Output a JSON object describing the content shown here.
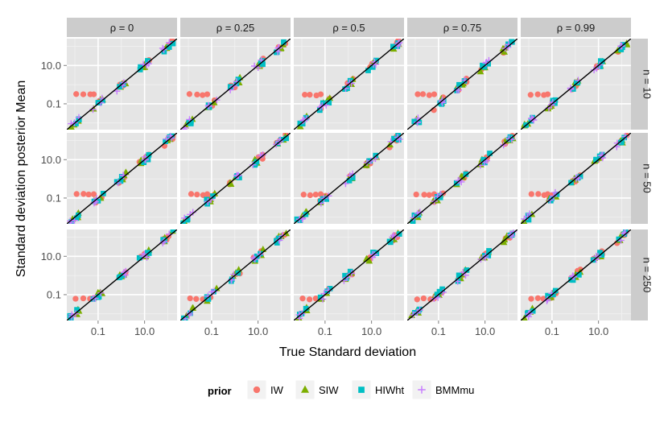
{
  "chart_data": {
    "type": "scatter",
    "title": "",
    "xlabel": "True Standard deviation",
    "ylabel": "Standard deviation posterior Mean",
    "x_scale": "log10",
    "y_scale": "log10",
    "xlim": [
      0.0045,
      250
    ],
    "ylim": [
      0.0045,
      250
    ],
    "x_ticks": [
      {
        "value": 0.1,
        "label": "0.1"
      },
      {
        "value": 10,
        "label": "10.0"
      }
    ],
    "y_ticks": [
      {
        "value": 0.1,
        "label": "0.1"
      },
      {
        "value": 10,
        "label": "10.0"
      }
    ],
    "reference_line": "y = x",
    "facet_columns": [
      "ρ = 0",
      "ρ = 0.25",
      "ρ = 0.5",
      "ρ = 0.75",
      "ρ = 0.99"
    ],
    "facet_rows": [
      "n = 10",
      "n = 50",
      "n = 250"
    ],
    "true_sd_values": [
      0.01,
      0.1,
      1,
      10,
      100
    ],
    "legend": {
      "title": "prior",
      "position": "bottom",
      "entries": [
        {
          "name": "IW",
          "shape": "circle",
          "color": "#F8766D"
        },
        {
          "name": "SIW",
          "shape": "triangle",
          "color": "#7CAE00"
        },
        {
          "name": "HIWht",
          "shape": "square",
          "color": "#00BFC4"
        },
        {
          "name": "BMMmu",
          "shape": "plus",
          "color": "#C77CFF"
        }
      ]
    },
    "series": [
      {
        "name": "IW",
        "small_sd_posterior_mean": [
          0.3,
          0.15,
          0.06
        ],
        "other_points": "close to y = x"
      },
      {
        "name": "SIW",
        "points": "close to y = x"
      },
      {
        "name": "HIWht",
        "points": "close to y = x"
      },
      {
        "name": "BMMmu",
        "points": "close to y = x"
      }
    ]
  }
}
